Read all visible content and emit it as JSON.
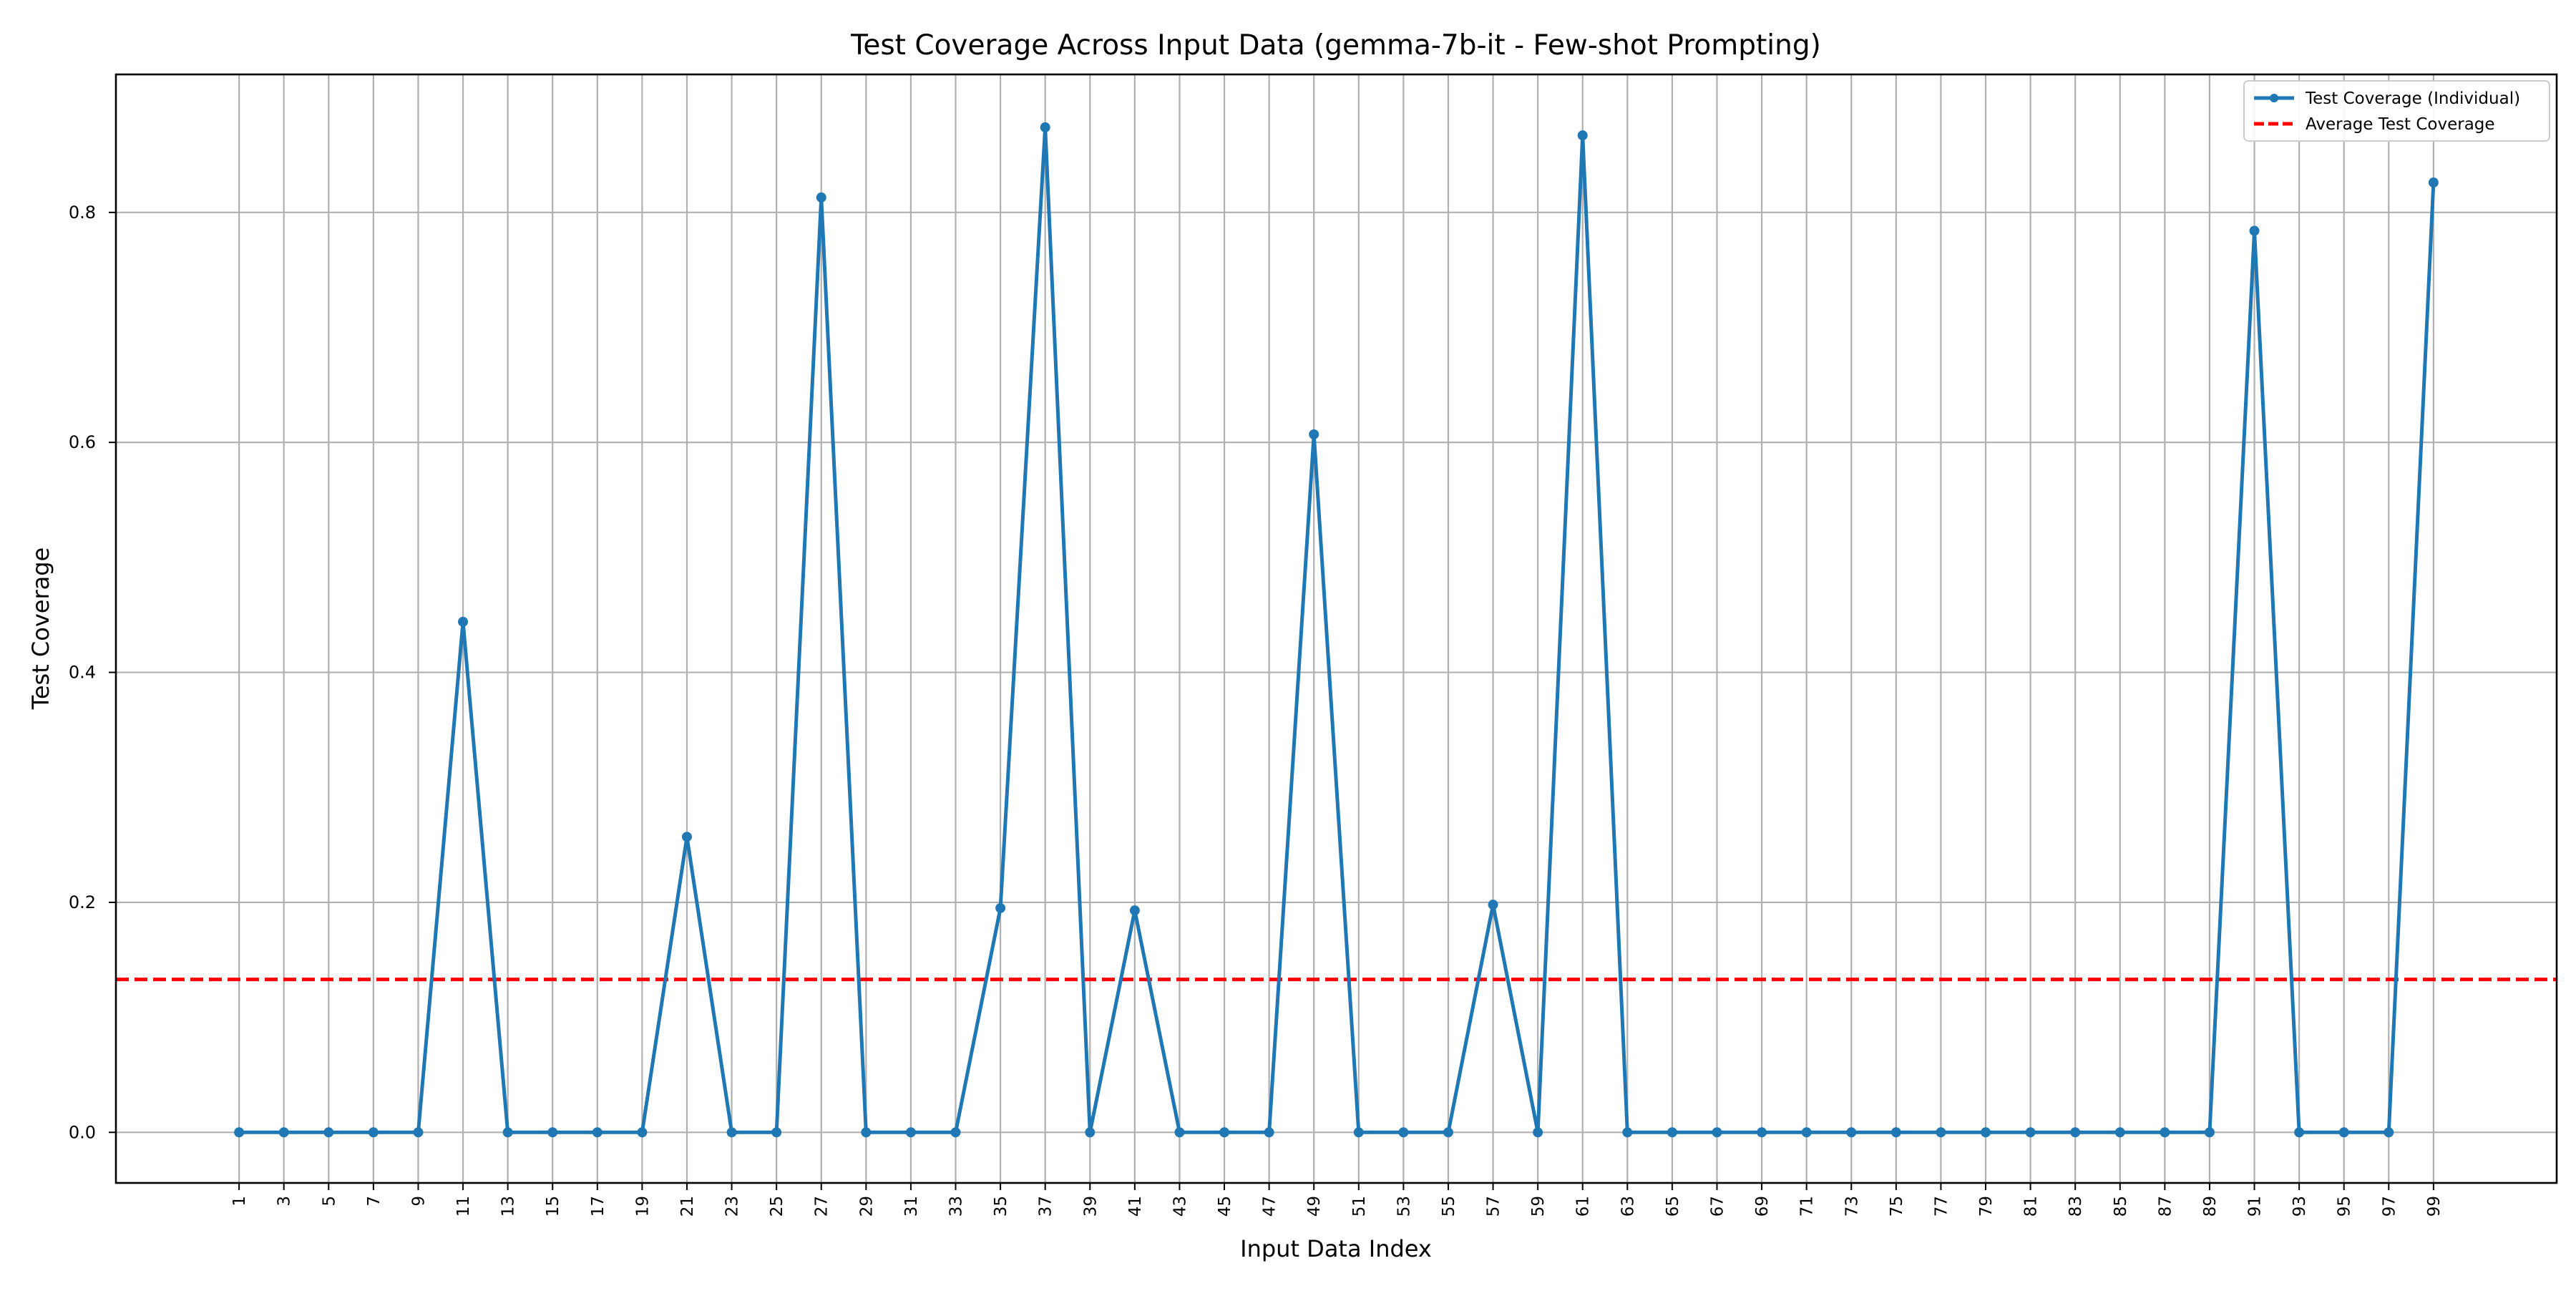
{
  "chart_data": {
    "type": "line",
    "title": "Test Coverage Across Input Data (gemma-7b-it - Few-shot Prompting)",
    "xlabel": "Input Data Index",
    "ylabel": "Test Coverage",
    "x": [
      1,
      3,
      5,
      7,
      9,
      11,
      13,
      15,
      17,
      19,
      21,
      23,
      25,
      27,
      29,
      31,
      33,
      35,
      37,
      39,
      41,
      43,
      45,
      47,
      49,
      51,
      53,
      55,
      57,
      59,
      61,
      63,
      65,
      67,
      69,
      71,
      73,
      75,
      77,
      79,
      81,
      83,
      85,
      87,
      89,
      91,
      93,
      95,
      97,
      99
    ],
    "x_tick_labels": [
      "1",
      "3",
      "5",
      "7",
      "9",
      "11",
      "13",
      "15",
      "17",
      "19",
      "21",
      "23",
      "25",
      "27",
      "29",
      "31",
      "33",
      "35",
      "37",
      "39",
      "41",
      "43",
      "45",
      "47",
      "49",
      "51",
      "53",
      "55",
      "57",
      "59",
      "61",
      "63",
      "65",
      "67",
      "69",
      "71",
      "73",
      "75",
      "77",
      "79",
      "81",
      "83",
      "85",
      "87",
      "89",
      "91",
      "93",
      "95",
      "97",
      "99"
    ],
    "y_ticks": [
      0.0,
      0.2,
      0.4,
      0.6,
      0.8
    ],
    "y_tick_labels": [
      "0.0",
      "0.2",
      "0.4",
      "0.6",
      "0.8"
    ],
    "xlim": [
      -4.5,
      104.5
    ],
    "ylim": [
      -0.044,
      0.92
    ],
    "grid": true,
    "legend_position": "upper right",
    "series": [
      {
        "name": "Test Coverage (Individual)",
        "color": "#1f77b4",
        "style": "solid line with circle markers",
        "values": [
          0,
          0,
          0,
          0,
          0,
          0.444,
          0,
          0,
          0,
          0,
          0.257,
          0,
          0,
          0.813,
          0,
          0,
          0,
          0.195,
          0.874,
          0,
          0.193,
          0,
          0,
          0,
          0.607,
          0,
          0,
          0,
          0.198,
          0,
          0.867,
          0,
          0,
          0,
          0,
          0,
          0,
          0,
          0,
          0,
          0,
          0,
          0,
          0,
          0,
          0.784,
          0,
          0,
          0,
          0.826
        ]
      },
      {
        "name": "Average Test Coverage",
        "color": "#ff0000",
        "style": "dashed horizontal line",
        "value": 0.133
      }
    ]
  }
}
